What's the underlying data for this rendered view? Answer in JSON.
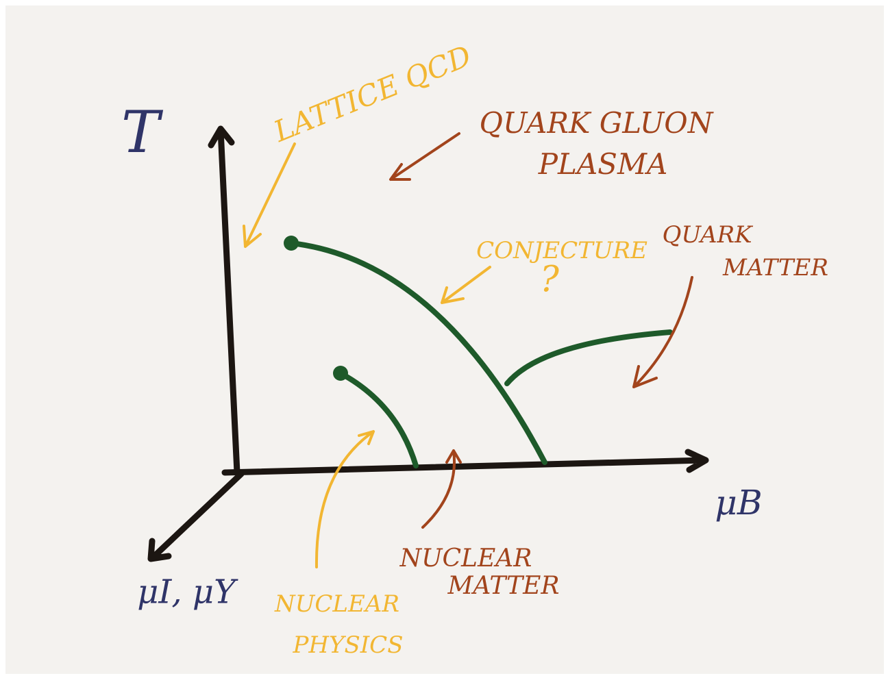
{
  "axes": {
    "y": "T",
    "x": "μB",
    "z": "μI, μY"
  },
  "labels": [
    {
      "lines": [
        "LATTICE QCD"
      ]
    },
    {
      "lines": [
        "QUARK GLUON",
        "PLASMA"
      ]
    },
    {
      "lines": [
        "CONJECTURE"
      ]
    },
    {
      "lines": [
        "?"
      ]
    },
    {
      "lines": [
        "QUARK",
        "MATTER"
      ]
    },
    {
      "lines": [
        "NUCLEAR",
        "PHYSICS"
      ]
    },
    {
      "lines": [
        "NUCLEAR",
        "MATTER"
      ]
    }
  ]
}
